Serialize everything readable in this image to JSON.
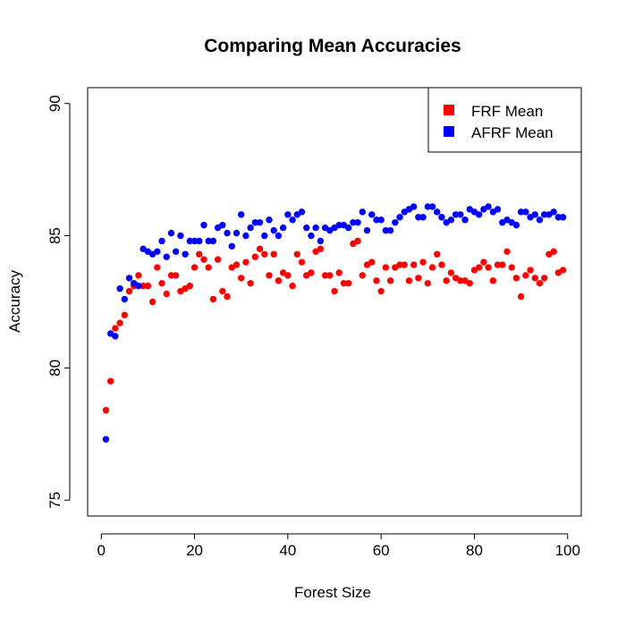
{
  "chart_data": {
    "type": "scatter",
    "title": "Comparing Mean Accuracies",
    "xlabel": "Forest Size",
    "ylabel": "Accuracy",
    "xlim": [
      -2.92,
      102.92
    ],
    "ylim": [
      74.4,
      90.6
    ],
    "x_ticks": [
      0,
      20,
      40,
      60,
      80,
      100
    ],
    "y_ticks": [
      75,
      80,
      85,
      90
    ],
    "grid": false,
    "legend_position": "top-right",
    "series": [
      {
        "name": "FRF Mean",
        "color": "#ff0000",
        "x": [
          1,
          2,
          3,
          4,
          5,
          6,
          7,
          8,
          9,
          10,
          11,
          12,
          13,
          14,
          15,
          16,
          17,
          18,
          19,
          20,
          21,
          22,
          23,
          24,
          25,
          26,
          27,
          28,
          29,
          30,
          31,
          32,
          33,
          34,
          35,
          36,
          37,
          38,
          39,
          40,
          41,
          42,
          43,
          44,
          45,
          46,
          47,
          48,
          49,
          50,
          51,
          52,
          53,
          54,
          55,
          56,
          57,
          58,
          59,
          60,
          61,
          62,
          63,
          64,
          65,
          66,
          67,
          68,
          69,
          70,
          71,
          72,
          73,
          74,
          75,
          76,
          77,
          78,
          79,
          80,
          81,
          82,
          83,
          84,
          85,
          86,
          87,
          88,
          89,
          90,
          91,
          92,
          93,
          94,
          95,
          96,
          97,
          98,
          99
        ],
        "y": [
          78.4,
          79.5,
          81.5,
          81.7,
          82.0,
          82.9,
          83.1,
          83.5,
          83.1,
          83.1,
          82.5,
          83.8,
          83.2,
          82.8,
          83.5,
          83.5,
          82.9,
          83.0,
          83.1,
          83.8,
          84.3,
          84.1,
          83.8,
          82.6,
          84.1,
          82.9,
          82.7,
          83.8,
          83.9,
          83.4,
          84.0,
          83.2,
          84.2,
          84.5,
          84.3,
          83.5,
          84.3,
          83.3,
          83.6,
          83.5,
          83.1,
          84.3,
          84.0,
          83.5,
          83.6,
          84.4,
          84.5,
          83.5,
          83.5,
          82.9,
          83.6,
          83.2,
          83.2,
          84.7,
          84.8,
          83.5,
          83.9,
          84.0,
          83.3,
          82.9,
          83.8,
          83.3,
          83.8,
          83.9,
          83.9,
          83.3,
          83.9,
          83.4,
          84.0,
          83.2,
          83.8,
          84.3,
          83.9,
          83.3,
          83.6,
          83.4,
          83.3,
          83.3,
          83.2,
          83.7,
          83.8,
          84.0,
          83.8,
          83.3,
          83.9,
          83.9,
          84.4,
          83.8,
          83.4,
          82.7,
          83.5,
          83.7,
          83.4,
          83.2,
          83.4,
          84.3,
          84.4,
          83.6,
          83.7
        ]
      },
      {
        "name": "AFRF Mean",
        "color": "#0000ff",
        "x": [
          1,
          2,
          3,
          4,
          5,
          6,
          7,
          8,
          9,
          10,
          11,
          12,
          13,
          14,
          15,
          16,
          17,
          18,
          19,
          20,
          21,
          22,
          23,
          24,
          25,
          26,
          27,
          28,
          29,
          30,
          31,
          32,
          33,
          34,
          35,
          36,
          37,
          38,
          39,
          40,
          41,
          42,
          43,
          44,
          45,
          46,
          47,
          48,
          49,
          50,
          51,
          52,
          53,
          54,
          55,
          56,
          57,
          58,
          59,
          60,
          61,
          62,
          63,
          64,
          65,
          66,
          67,
          68,
          69,
          70,
          71,
          72,
          73,
          74,
          75,
          76,
          77,
          78,
          79,
          80,
          81,
          82,
          83,
          84,
          85,
          86,
          87,
          88,
          89,
          90,
          91,
          92,
          93,
          94,
          95,
          96,
          97,
          98,
          99
        ],
        "y": [
          77.3,
          81.3,
          81.2,
          83.0,
          82.6,
          83.4,
          83.2,
          83.1,
          84.5,
          84.4,
          84.3,
          84.4,
          84.8,
          84.2,
          85.1,
          84.4,
          85.0,
          84.3,
          84.8,
          84.8,
          84.8,
          85.4,
          84.8,
          84.8,
          85.3,
          85.4,
          85.1,
          84.6,
          85.1,
          85.8,
          85.0,
          85.3,
          85.5,
          85.5,
          85.0,
          85.6,
          85.2,
          85.0,
          85.3,
          85.8,
          85.6,
          85.8,
          85.9,
          85.3,
          85.0,
          85.3,
          84.8,
          85.3,
          85.2,
          85.3,
          85.4,
          85.4,
          85.3,
          85.5,
          85.5,
          85.9,
          85.2,
          85.8,
          85.6,
          85.6,
          85.2,
          85.2,
          85.5,
          85.7,
          85.9,
          86.0,
          86.1,
          85.7,
          85.7,
          86.1,
          86.1,
          85.9,
          85.7,
          85.5,
          85.6,
          85.8,
          85.8,
          85.6,
          86.0,
          85.9,
          85.8,
          86.0,
          86.1,
          85.9,
          86.0,
          85.5,
          85.6,
          85.5,
          85.4,
          85.9,
          85.9,
          85.7,
          85.8,
          85.6,
          85.8,
          85.8,
          85.9,
          85.7,
          85.7
        ]
      }
    ]
  }
}
